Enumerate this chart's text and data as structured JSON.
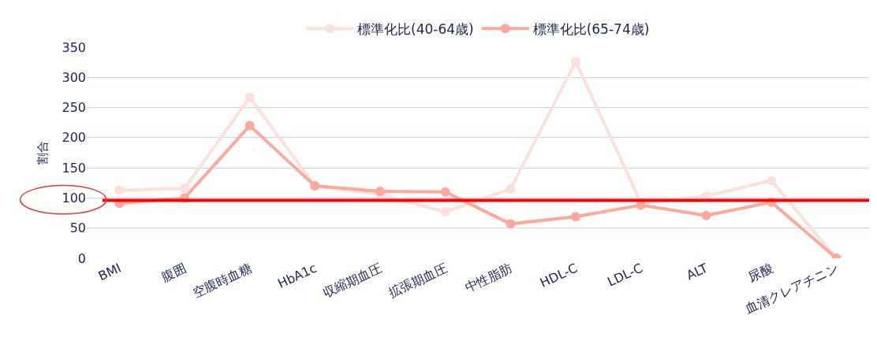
{
  "chart_data": {
    "type": "line",
    "ylabel": "割合",
    "categories": [
      "BMI",
      "腹囲",
      "空腹時血糖",
      "HbA1c",
      "収縮期血圧",
      "拡張期血圧",
      "中性脂肪",
      "HDL-C",
      "LDL-C",
      "ALT",
      "尿酸",
      "血清クレアチニン"
    ],
    "series": [
      {
        "name": "標準化比(40-64歳)",
        "color": "#fde0d9",
        "values": [
          113,
          116,
          267,
          120,
          106,
          77,
          115,
          326,
          92,
          103,
          129,
          0
        ]
      },
      {
        "name": "標準化比(65-74歳)",
        "color": "#fca89a",
        "values": [
          91,
          100,
          220,
          120,
          111,
          110,
          57,
          69,
          88,
          71,
          93,
          0
        ]
      }
    ],
    "ylim": [
      0,
      350
    ],
    "yticks": [
      0,
      50,
      100,
      150,
      200,
      250,
      300,
      350
    ],
    "ref_lines": [
      {
        "axis": "y",
        "value": 96,
        "label": null,
        "color": "#ff0000"
      }
    ],
    "grid": "y",
    "legend": "top",
    "marker": "circle",
    "line_style": "solid"
  }
}
